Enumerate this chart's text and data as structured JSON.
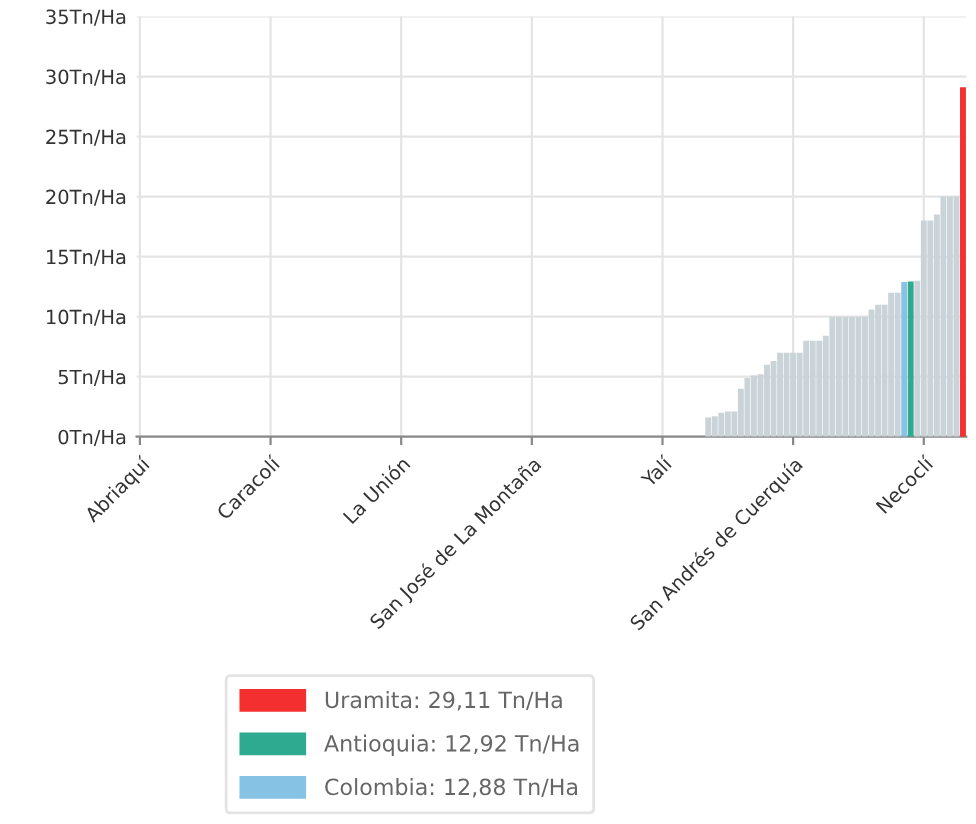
{
  "chart_data": {
    "type": "bar",
    "categories": [
      "Abriaquí",
      null,
      null,
      null,
      null,
      null,
      null,
      null,
      null,
      null,
      null,
      null,
      null,
      null,
      null,
      null,
      null,
      null,
      null,
      null,
      "Caracolí",
      null,
      null,
      null,
      null,
      null,
      null,
      null,
      null,
      null,
      null,
      null,
      null,
      null,
      null,
      null,
      null,
      null,
      null,
      null,
      "La Unión",
      null,
      null,
      null,
      null,
      null,
      null,
      null,
      null,
      null,
      null,
      null,
      null,
      null,
      null,
      null,
      null,
      null,
      null,
      null,
      "San José de La Montaña",
      null,
      null,
      null,
      null,
      null,
      null,
      null,
      null,
      null,
      null,
      null,
      null,
      null,
      null,
      null,
      null,
      null,
      null,
      null,
      "Yalí",
      null,
      null,
      null,
      null,
      null,
      null,
      null,
      null,
      null,
      null,
      null,
      null,
      null,
      null,
      null,
      null,
      null,
      null,
      null,
      "San Andrés de Cuerquía",
      null,
      null,
      null,
      null,
      null,
      null,
      null,
      null,
      null,
      null,
      null,
      null,
      null,
      null,
      null,
      null,
      null,
      null,
      null,
      "Necoclí",
      null,
      null,
      null,
      null,
      null,
      null
    ],
    "series": [
      {
        "color": "#c9d3d8",
        "values": [
          null,
          null,
          null,
          null,
          null,
          null,
          null,
          null,
          null,
          null,
          null,
          null,
          null,
          null,
          null,
          null,
          null,
          null,
          null,
          null,
          null,
          null,
          null,
          null,
          null,
          null,
          null,
          null,
          null,
          null,
          null,
          null,
          null,
          null,
          null,
          null,
          null,
          null,
          null,
          null,
          null,
          null,
          null,
          null,
          null,
          null,
          null,
          null,
          null,
          null,
          null,
          null,
          null,
          null,
          null,
          null,
          null,
          null,
          null,
          null,
          null,
          null,
          null,
          null,
          null,
          null,
          null,
          null,
          null,
          null,
          null,
          null,
          null,
          null,
          null,
          null,
          null,
          null,
          null,
          null,
          null,
          null,
          null,
          null,
          null,
          null,
          null,
          1.6,
          1.7,
          2.0,
          2.1,
          2.1,
          4.0,
          4.9,
          5.1,
          5.2,
          6.0,
          6.3,
          7.0,
          7.0,
          7.0,
          7.0,
          8.0,
          8.0,
          8.0,
          8.4,
          10.0,
          10.0,
          10.0,
          10.0,
          10.0,
          10.0,
          10.6,
          11.0,
          11.0,
          12.0,
          12.0,
          null,
          null,
          13.0,
          18.0,
          18.0,
          18.5,
          20.0,
          20.0,
          20.0,
          null
        ]
      },
      {
        "name": "Uramita: 29,11 Tn/Ha",
        "color": "#f42f30",
        "values": [
          null,
          null,
          null,
          null,
          null,
          null,
          null,
          null,
          null,
          null,
          null,
          null,
          null,
          null,
          null,
          null,
          null,
          null,
          null,
          null,
          null,
          null,
          null,
          null,
          null,
          null,
          null,
          null,
          null,
          null,
          null,
          null,
          null,
          null,
          null,
          null,
          null,
          null,
          null,
          null,
          null,
          null,
          null,
          null,
          null,
          null,
          null,
          null,
          null,
          null,
          null,
          null,
          null,
          null,
          null,
          null,
          null,
          null,
          null,
          null,
          null,
          null,
          null,
          null,
          null,
          null,
          null,
          null,
          null,
          null,
          null,
          null,
          null,
          null,
          null,
          null,
          null,
          null,
          null,
          null,
          null,
          null,
          null,
          null,
          null,
          null,
          null,
          null,
          null,
          null,
          null,
          null,
          null,
          null,
          null,
          null,
          null,
          null,
          null,
          null,
          null,
          null,
          null,
          null,
          null,
          null,
          null,
          null,
          null,
          null,
          null,
          null,
          null,
          null,
          null,
          null,
          null,
          null,
          null,
          null,
          null,
          null,
          null,
          null,
          null,
          null,
          29.11
        ]
      },
      {
        "name": "Antioquia: 12,92 Tn/Ha",
        "color": "#2eaa90",
        "values": [
          null,
          null,
          null,
          null,
          null,
          null,
          null,
          null,
          null,
          null,
          null,
          null,
          null,
          null,
          null,
          null,
          null,
          null,
          null,
          null,
          null,
          null,
          null,
          null,
          null,
          null,
          null,
          null,
          null,
          null,
          null,
          null,
          null,
          null,
          null,
          null,
          null,
          null,
          null,
          null,
          null,
          null,
          null,
          null,
          null,
          null,
          null,
          null,
          null,
          null,
          null,
          null,
          null,
          null,
          null,
          null,
          null,
          null,
          null,
          null,
          null,
          null,
          null,
          null,
          null,
          null,
          null,
          null,
          null,
          null,
          null,
          null,
          null,
          null,
          null,
          null,
          null,
          null,
          null,
          null,
          null,
          null,
          null,
          null,
          null,
          null,
          null,
          null,
          null,
          null,
          null,
          null,
          null,
          null,
          null,
          null,
          null,
          null,
          null,
          null,
          null,
          null,
          null,
          null,
          null,
          null,
          null,
          null,
          null,
          null,
          null,
          null,
          null,
          null,
          null,
          null,
          null,
          null,
          12.92,
          null,
          null,
          null,
          null,
          null,
          null,
          null,
          null
        ]
      },
      {
        "name": "Colombia: 12,88 Tn/Ha",
        "color": "#86c2e3",
        "values": [
          null,
          null,
          null,
          null,
          null,
          null,
          null,
          null,
          null,
          null,
          null,
          null,
          null,
          null,
          null,
          null,
          null,
          null,
          null,
          null,
          null,
          null,
          null,
          null,
          null,
          null,
          null,
          null,
          null,
          null,
          null,
          null,
          null,
          null,
          null,
          null,
          null,
          null,
          null,
          null,
          null,
          null,
          null,
          null,
          null,
          null,
          null,
          null,
          null,
          null,
          null,
          null,
          null,
          null,
          null,
          null,
          null,
          null,
          null,
          null,
          null,
          null,
          null,
          null,
          null,
          null,
          null,
          null,
          null,
          null,
          null,
          null,
          null,
          null,
          null,
          null,
          null,
          null,
          null,
          null,
          null,
          null,
          null,
          null,
          null,
          null,
          null,
          null,
          null,
          null,
          null,
          null,
          null,
          null,
          null,
          null,
          null,
          null,
          null,
          null,
          null,
          null,
          null,
          null,
          null,
          null,
          null,
          null,
          null,
          null,
          null,
          null,
          null,
          null,
          null,
          null,
          null,
          12.88,
          null,
          null,
          null,
          null,
          null,
          null,
          null,
          null,
          null
        ]
      }
    ],
    "ylim": [
      0,
      35
    ],
    "yticks": [
      {
        "value": 0,
        "label": "0Tn/Ha"
      },
      {
        "value": 5,
        "label": "5Tn/Ha"
      },
      {
        "value": 10,
        "label": "10Tn/Ha"
      },
      {
        "value": 15,
        "label": "15Tn/Ha"
      },
      {
        "value": 20,
        "label": "20Tn/Ha"
      },
      {
        "value": 25,
        "label": "25Tn/Ha"
      },
      {
        "value": 30,
        "label": "30Tn/Ha"
      },
      {
        "value": 35,
        "label": "35Tn/Ha"
      }
    ],
    "grid": true,
    "legend": "bottom"
  }
}
